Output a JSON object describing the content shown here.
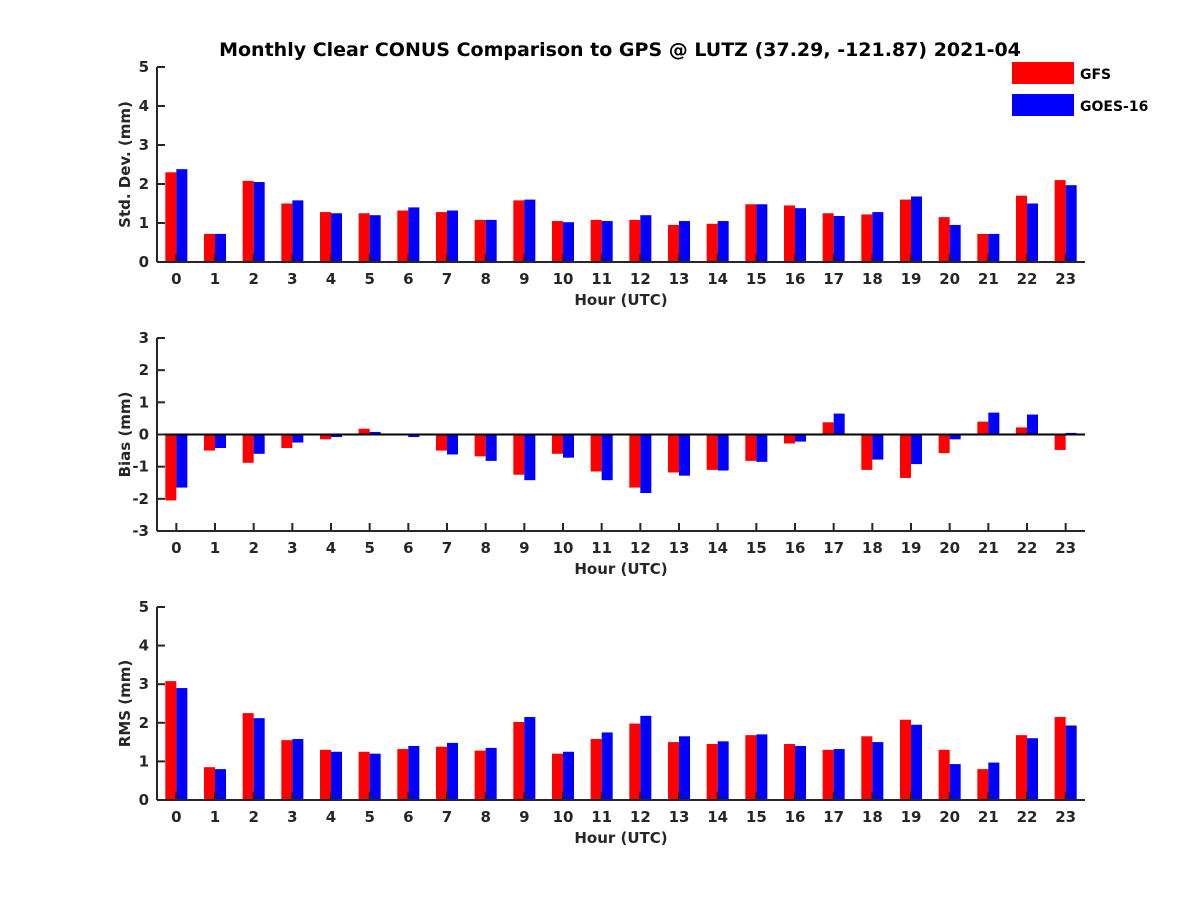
{
  "figure": {
    "title": "Monthly Clear CONUS Comparison to GPS @ LUTZ (37.29, -121.87) 2021-04"
  },
  "legend": [
    {
      "name": "GFS",
      "color": "#ff0000"
    },
    {
      "name": "GOES-16",
      "color": "#0000ff"
    }
  ],
  "chart_data": [
    {
      "type": "bar",
      "title": "Monthly Clear CONUS Comparison to GPS @ LUTZ (37.29, -121.87) 2021-04",
      "xlabel": "Hour (UTC)",
      "ylabel": "Std. Dev. (mm)",
      "ylim": [
        0,
        5
      ],
      "yticks": [
        0,
        1,
        2,
        3,
        4,
        5
      ],
      "grid": false,
      "legend_position": "top-right",
      "categories": [
        "0",
        "1",
        "2",
        "3",
        "4",
        "5",
        "6",
        "7",
        "8",
        "9",
        "10",
        "11",
        "12",
        "13",
        "14",
        "15",
        "16",
        "17",
        "18",
        "19",
        "20",
        "21",
        "22",
        "23"
      ],
      "series": [
        {
          "name": "GFS",
          "color": "#ff0000",
          "values": [
            2.3,
            0.72,
            2.08,
            1.5,
            1.28,
            1.25,
            1.32,
            1.28,
            1.08,
            1.58,
            1.05,
            1.08,
            1.08,
            0.95,
            0.98,
            1.48,
            1.45,
            1.25,
            1.22,
            1.6,
            1.15,
            0.72,
            1.7,
            2.1
          ]
        },
        {
          "name": "GOES-16",
          "color": "#0000ff",
          "values": [
            2.38,
            0.72,
            2.05,
            1.58,
            1.25,
            1.2,
            1.4,
            1.32,
            1.08,
            1.6,
            1.02,
            1.05,
            1.2,
            1.05,
            1.05,
            1.48,
            1.38,
            1.18,
            1.28,
            1.68,
            0.95,
            0.72,
            1.5,
            1.97
          ]
        }
      ]
    },
    {
      "type": "bar",
      "xlabel": "Hour (UTC)",
      "ylabel": "Bias (mm)",
      "ylim": [
        -3,
        3
      ],
      "yticks": [
        -3,
        -2,
        -1,
        0,
        1,
        2,
        3
      ],
      "grid": false,
      "categories": [
        "0",
        "1",
        "2",
        "3",
        "4",
        "5",
        "6",
        "7",
        "8",
        "9",
        "10",
        "11",
        "12",
        "13",
        "14",
        "15",
        "16",
        "17",
        "18",
        "19",
        "20",
        "21",
        "22",
        "23"
      ],
      "series": [
        {
          "name": "GFS",
          "color": "#ff0000",
          "values": [
            -2.05,
            -0.5,
            -0.88,
            -0.42,
            -0.15,
            0.18,
            -0.02,
            -0.5,
            -0.68,
            -1.25,
            -0.6,
            -1.15,
            -1.65,
            -1.18,
            -1.1,
            -0.82,
            -0.28,
            0.38,
            -1.1,
            -1.35,
            -0.58,
            0.4,
            0.22,
            -0.48
          ]
        },
        {
          "name": "GOES-16",
          "color": "#0000ff",
          "values": [
            -1.65,
            -0.42,
            -0.6,
            -0.25,
            -0.08,
            0.08,
            -0.08,
            -0.62,
            -0.82,
            -1.42,
            -0.72,
            -1.42,
            -1.82,
            -1.28,
            -1.12,
            -0.85,
            -0.22,
            0.65,
            -0.78,
            -0.92,
            -0.15,
            0.68,
            0.62,
            0.05
          ]
        }
      ]
    },
    {
      "type": "bar",
      "xlabel": "Hour (UTC)",
      "ylabel": "RMS (mm)",
      "ylim": [
        0,
        5
      ],
      "yticks": [
        0,
        1,
        2,
        3,
        4,
        5
      ],
      "grid": false,
      "categories": [
        "0",
        "1",
        "2",
        "3",
        "4",
        "5",
        "6",
        "7",
        "8",
        "9",
        "10",
        "11",
        "12",
        "13",
        "14",
        "15",
        "16",
        "17",
        "18",
        "19",
        "20",
        "21",
        "22",
        "23"
      ],
      "series": [
        {
          "name": "GFS",
          "color": "#ff0000",
          "values": [
            3.08,
            0.85,
            2.25,
            1.55,
            1.3,
            1.25,
            1.32,
            1.38,
            1.28,
            2.02,
            1.2,
            1.58,
            1.98,
            1.5,
            1.45,
            1.68,
            1.45,
            1.3,
            1.65,
            2.08,
            1.3,
            0.8,
            1.68,
            2.15
          ]
        },
        {
          "name": "GOES-16",
          "color": "#0000ff",
          "values": [
            2.9,
            0.8,
            2.12,
            1.58,
            1.25,
            1.2,
            1.4,
            1.48,
            1.35,
            2.15,
            1.25,
            1.75,
            2.18,
            1.65,
            1.52,
            1.7,
            1.4,
            1.32,
            1.5,
            1.95,
            0.93,
            0.97,
            1.6,
            1.93
          ]
        }
      ]
    }
  ]
}
